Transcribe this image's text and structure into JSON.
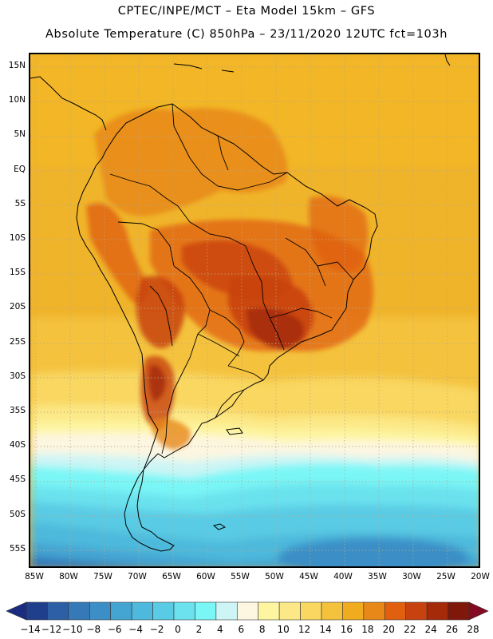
{
  "title_line1": "CPTEC/INPE/MCT –   Eta Model 15km – GFS",
  "title_line2": "Absolute Temperature (C) 850hPa – 23/11/2020 12UTC fct=103h",
  "lat_labels": [
    "15N",
    "10N",
    "5N",
    "EQ",
    "5S",
    "10S",
    "15S",
    "20S",
    "25S",
    "30S",
    "35S",
    "40S",
    "45S",
    "50S",
    "55S"
  ],
  "lon_labels": [
    "85W",
    "80W",
    "75W",
    "70W",
    "65W",
    "60W",
    "55W",
    "50W",
    "45W",
    "40W",
    "35W",
    "30W",
    "25W",
    "20W"
  ],
  "colorbar": {
    "labels": [
      "-14",
      "-12",
      "-10",
      "-8",
      "-6",
      "-4",
      "-2",
      "0",
      "2",
      "4",
      "6",
      "8",
      "10",
      "12",
      "14",
      "16",
      "18",
      "20",
      "22",
      "24",
      "26",
      "28"
    ],
    "colors": [
      "#1f3f8c",
      "#2d5fa6",
      "#3579b8",
      "#3b8fc6",
      "#44a4d2",
      "#4eb9dc",
      "#5acbe4",
      "#6be2ee",
      "#7af6f6",
      "#cdf5f5",
      "#fdf6e0",
      "#fdf5a0",
      "#fce886",
      "#f9d760",
      "#f4c23d",
      "#f0ac1e",
      "#e88818",
      "#e06010",
      "#c84210",
      "#a52a0a",
      "#7f180a"
    ],
    "under_color": "#1a2c80",
    "over_color": "#840a22"
  }
}
